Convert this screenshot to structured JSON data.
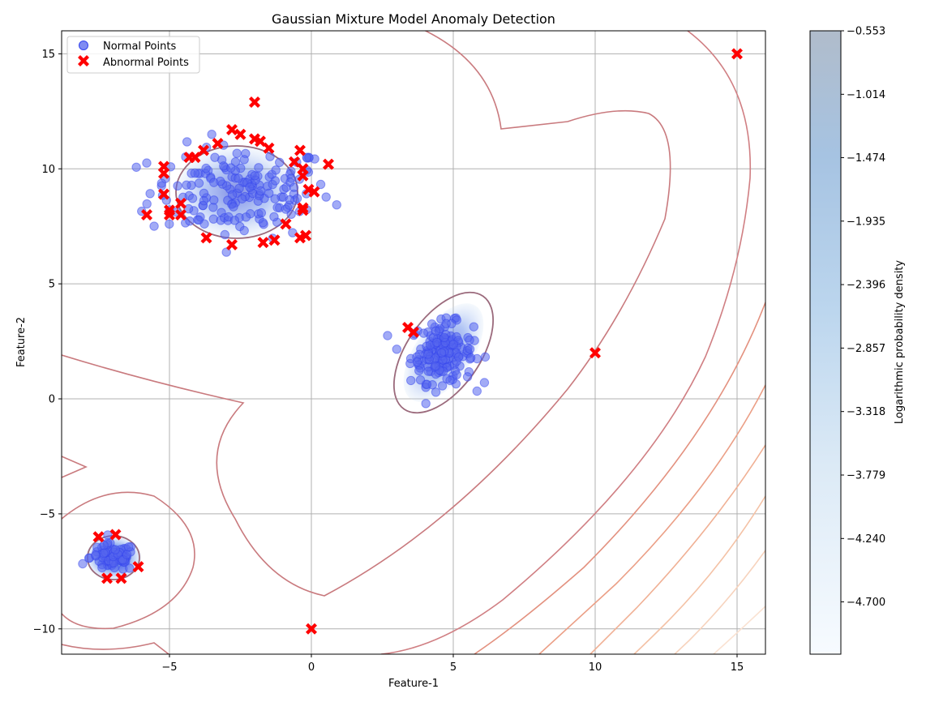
{
  "chart_data": {
    "type": "scatter",
    "title": "Gaussian Mixture Model Anomaly Detection",
    "xlabel": "Feature-1",
    "ylabel": "Feature-2",
    "xlim": [
      -8.8,
      16
    ],
    "ylim": [
      -11.1,
      16
    ],
    "xticks": [
      -5,
      0,
      5,
      10,
      15
    ],
    "xtick_labels": [
      "−5",
      "0",
      "5",
      "10",
      "15"
    ],
    "yticks": [
      -10,
      -5,
      0,
      5,
      10,
      15
    ],
    "ytick_labels": [
      "−10",
      "−5",
      "0",
      "5",
      "10",
      "15"
    ],
    "grid": true,
    "legend_position": "top-left",
    "colorbar": {
      "label": "Logarithmic probability density",
      "range": [
        -5.08,
        -0.553
      ],
      "ticks": [
        -0.553,
        -1.014,
        -1.474,
        -1.935,
        -2.396,
        -2.857,
        -3.318,
        -3.779,
        -4.24,
        -4.7
      ],
      "tick_labels": [
        "−0.553",
        "−1.014",
        "−1.474",
        "−1.935",
        "−2.396",
        "−2.857",
        "−3.318",
        "−3.779",
        "−4.240",
        "−4.700"
      ]
    },
    "clusters": [
      {
        "center": [
          -2.5,
          9.0
        ],
        "spread": [
          1.6,
          1.0
        ],
        "n": 170
      },
      {
        "center": [
          4.6,
          2.0
        ],
        "spread": [
          0.55,
          0.65
        ],
        "n": 170
      },
      {
        "center": [
          -7.0,
          -6.9
        ],
        "spread": [
          0.4,
          0.3
        ],
        "n": 80
      }
    ],
    "series": [
      {
        "name": "Normal Points",
        "color": "#3344ee",
        "marker": "circle"
      },
      {
        "name": "Abnormal Points",
        "color": "#ff0000",
        "marker": "x",
        "points": [
          [
            -2.0,
            12.9
          ],
          [
            -2.8,
            11.7
          ],
          [
            -2.5,
            11.5
          ],
          [
            -2.0,
            11.3
          ],
          [
            -1.8,
            11.2
          ],
          [
            -1.5,
            10.9
          ],
          [
            -3.3,
            11.1
          ],
          [
            -3.8,
            10.8
          ],
          [
            -4.3,
            10.5
          ],
          [
            -4.1,
            10.5
          ],
          [
            -0.4,
            10.8
          ],
          [
            -0.6,
            10.3
          ],
          [
            -0.3,
            10.0
          ],
          [
            -0.3,
            9.7
          ],
          [
            -5.2,
            10.1
          ],
          [
            -5.2,
            9.8
          ],
          [
            0.6,
            10.2
          ],
          [
            -0.1,
            9.1
          ],
          [
            0.1,
            9.0
          ],
          [
            -5.2,
            8.9
          ],
          [
            -4.6,
            8.5
          ],
          [
            -5.0,
            8.2
          ],
          [
            -5.0,
            8.0
          ],
          [
            -4.6,
            8.0
          ],
          [
            -5.8,
            8.0
          ],
          [
            -0.3,
            8.3
          ],
          [
            -0.3,
            8.2
          ],
          [
            -0.9,
            7.6
          ],
          [
            -3.7,
            7.0
          ],
          [
            -2.8,
            6.7
          ],
          [
            -1.7,
            6.8
          ],
          [
            -1.3,
            6.9
          ],
          [
            -0.4,
            7.0
          ],
          [
            -0.2,
            7.1
          ],
          [
            3.4,
            3.1
          ],
          [
            3.6,
            2.9
          ],
          [
            10.0,
            2.0
          ],
          [
            15.0,
            15.0
          ],
          [
            0.0,
            -10.0
          ],
          [
            -7.5,
            -6.0
          ],
          [
            -6.9,
            -5.9
          ],
          [
            -6.1,
            -7.3
          ],
          [
            -7.2,
            -7.8
          ],
          [
            -6.7,
            -7.8
          ]
        ]
      }
    ]
  }
}
